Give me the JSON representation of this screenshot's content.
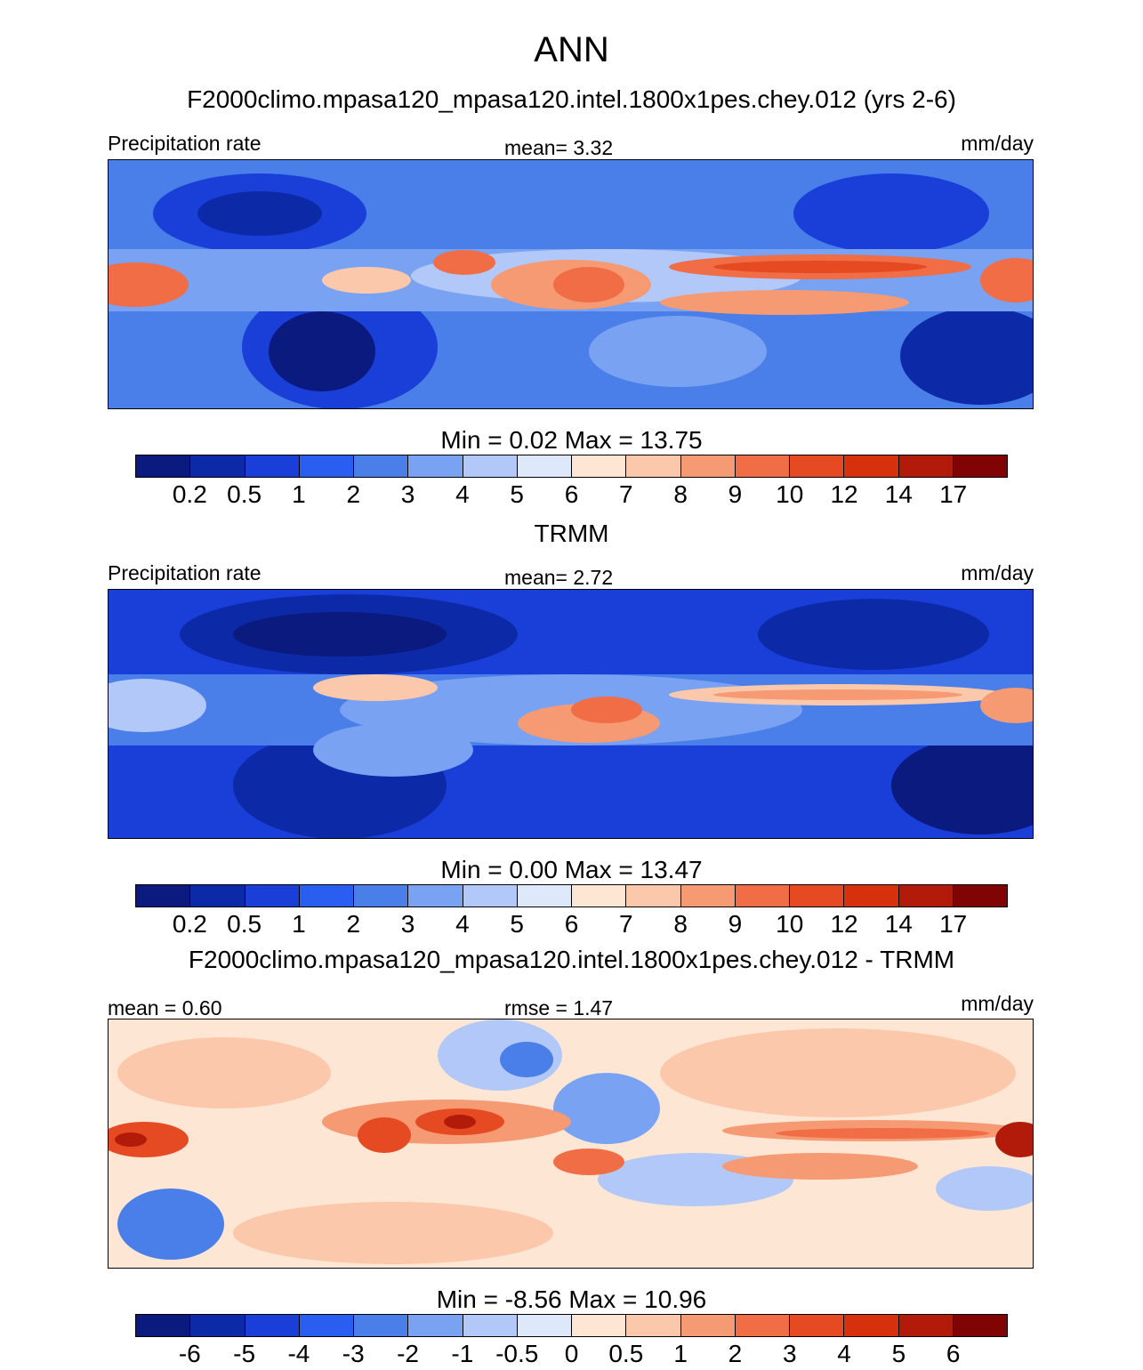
{
  "title": "ANN",
  "colors_abs": [
    "#0a1a7e",
    "#0c2aa8",
    "#1a3fd9",
    "#2a5ef0",
    "#4a7ee8",
    "#7aa2f2",
    "#b2c8f8",
    "#dde8fb",
    "#fde6d4",
    "#fbc8ac",
    "#f59a72",
    "#f06d45",
    "#e64a22",
    "#d6300d",
    "#b21a0a",
    "#800404"
  ],
  "colors_diff": [
    "#0a1a7e",
    "#0c2aa8",
    "#1a3fd9",
    "#2a5ef0",
    "#4a7ee8",
    "#7aa2f2",
    "#b2c8f8",
    "#dde8fb",
    "#fde6d4",
    "#fbc8ac",
    "#f59a72",
    "#f06d45",
    "#e64a22",
    "#d6300d",
    "#b21a0a",
    "#800404"
  ],
  "panels": [
    {
      "subtitle": "F2000climo.mpasa120_mpasa120.intel.1800x1pes.chey.012 (yrs 2-6)",
      "left": "Precipitation rate",
      "center": "mean=   3.32",
      "right": "mm/day",
      "minmax": "Min =   0.02 Max =  13.75",
      "ticks": [
        "0.2",
        "0.5",
        "1",
        "2",
        "3",
        "4",
        "5",
        "6",
        "7",
        "8",
        "9",
        "10",
        "12",
        "14",
        "17"
      ]
    },
    {
      "subtitle": "TRMM",
      "left": "Precipitation rate",
      "center": "mean=   2.72",
      "right": "mm/day",
      "minmax": "Min =   0.00 Max =  13.47",
      "ticks": [
        "0.2",
        "0.5",
        "1",
        "2",
        "3",
        "4",
        "5",
        "6",
        "7",
        "8",
        "9",
        "10",
        "12",
        "14",
        "17"
      ]
    },
    {
      "subtitle": "F2000climo.mpasa120_mpasa120.intel.1800x1pes.chey.012 - TRMM",
      "left": "mean =   0.60",
      "center": "rmse =   1.47",
      "right": "mm/day",
      "minmax": "Min =  -8.56 Max =  10.96",
      "ticks": [
        "-6",
        "-5",
        "-4",
        "-3",
        "-2",
        "-1",
        "-0.5",
        "0",
        "0.5",
        "1",
        "2",
        "3",
        "4",
        "5",
        "6"
      ]
    }
  ]
}
